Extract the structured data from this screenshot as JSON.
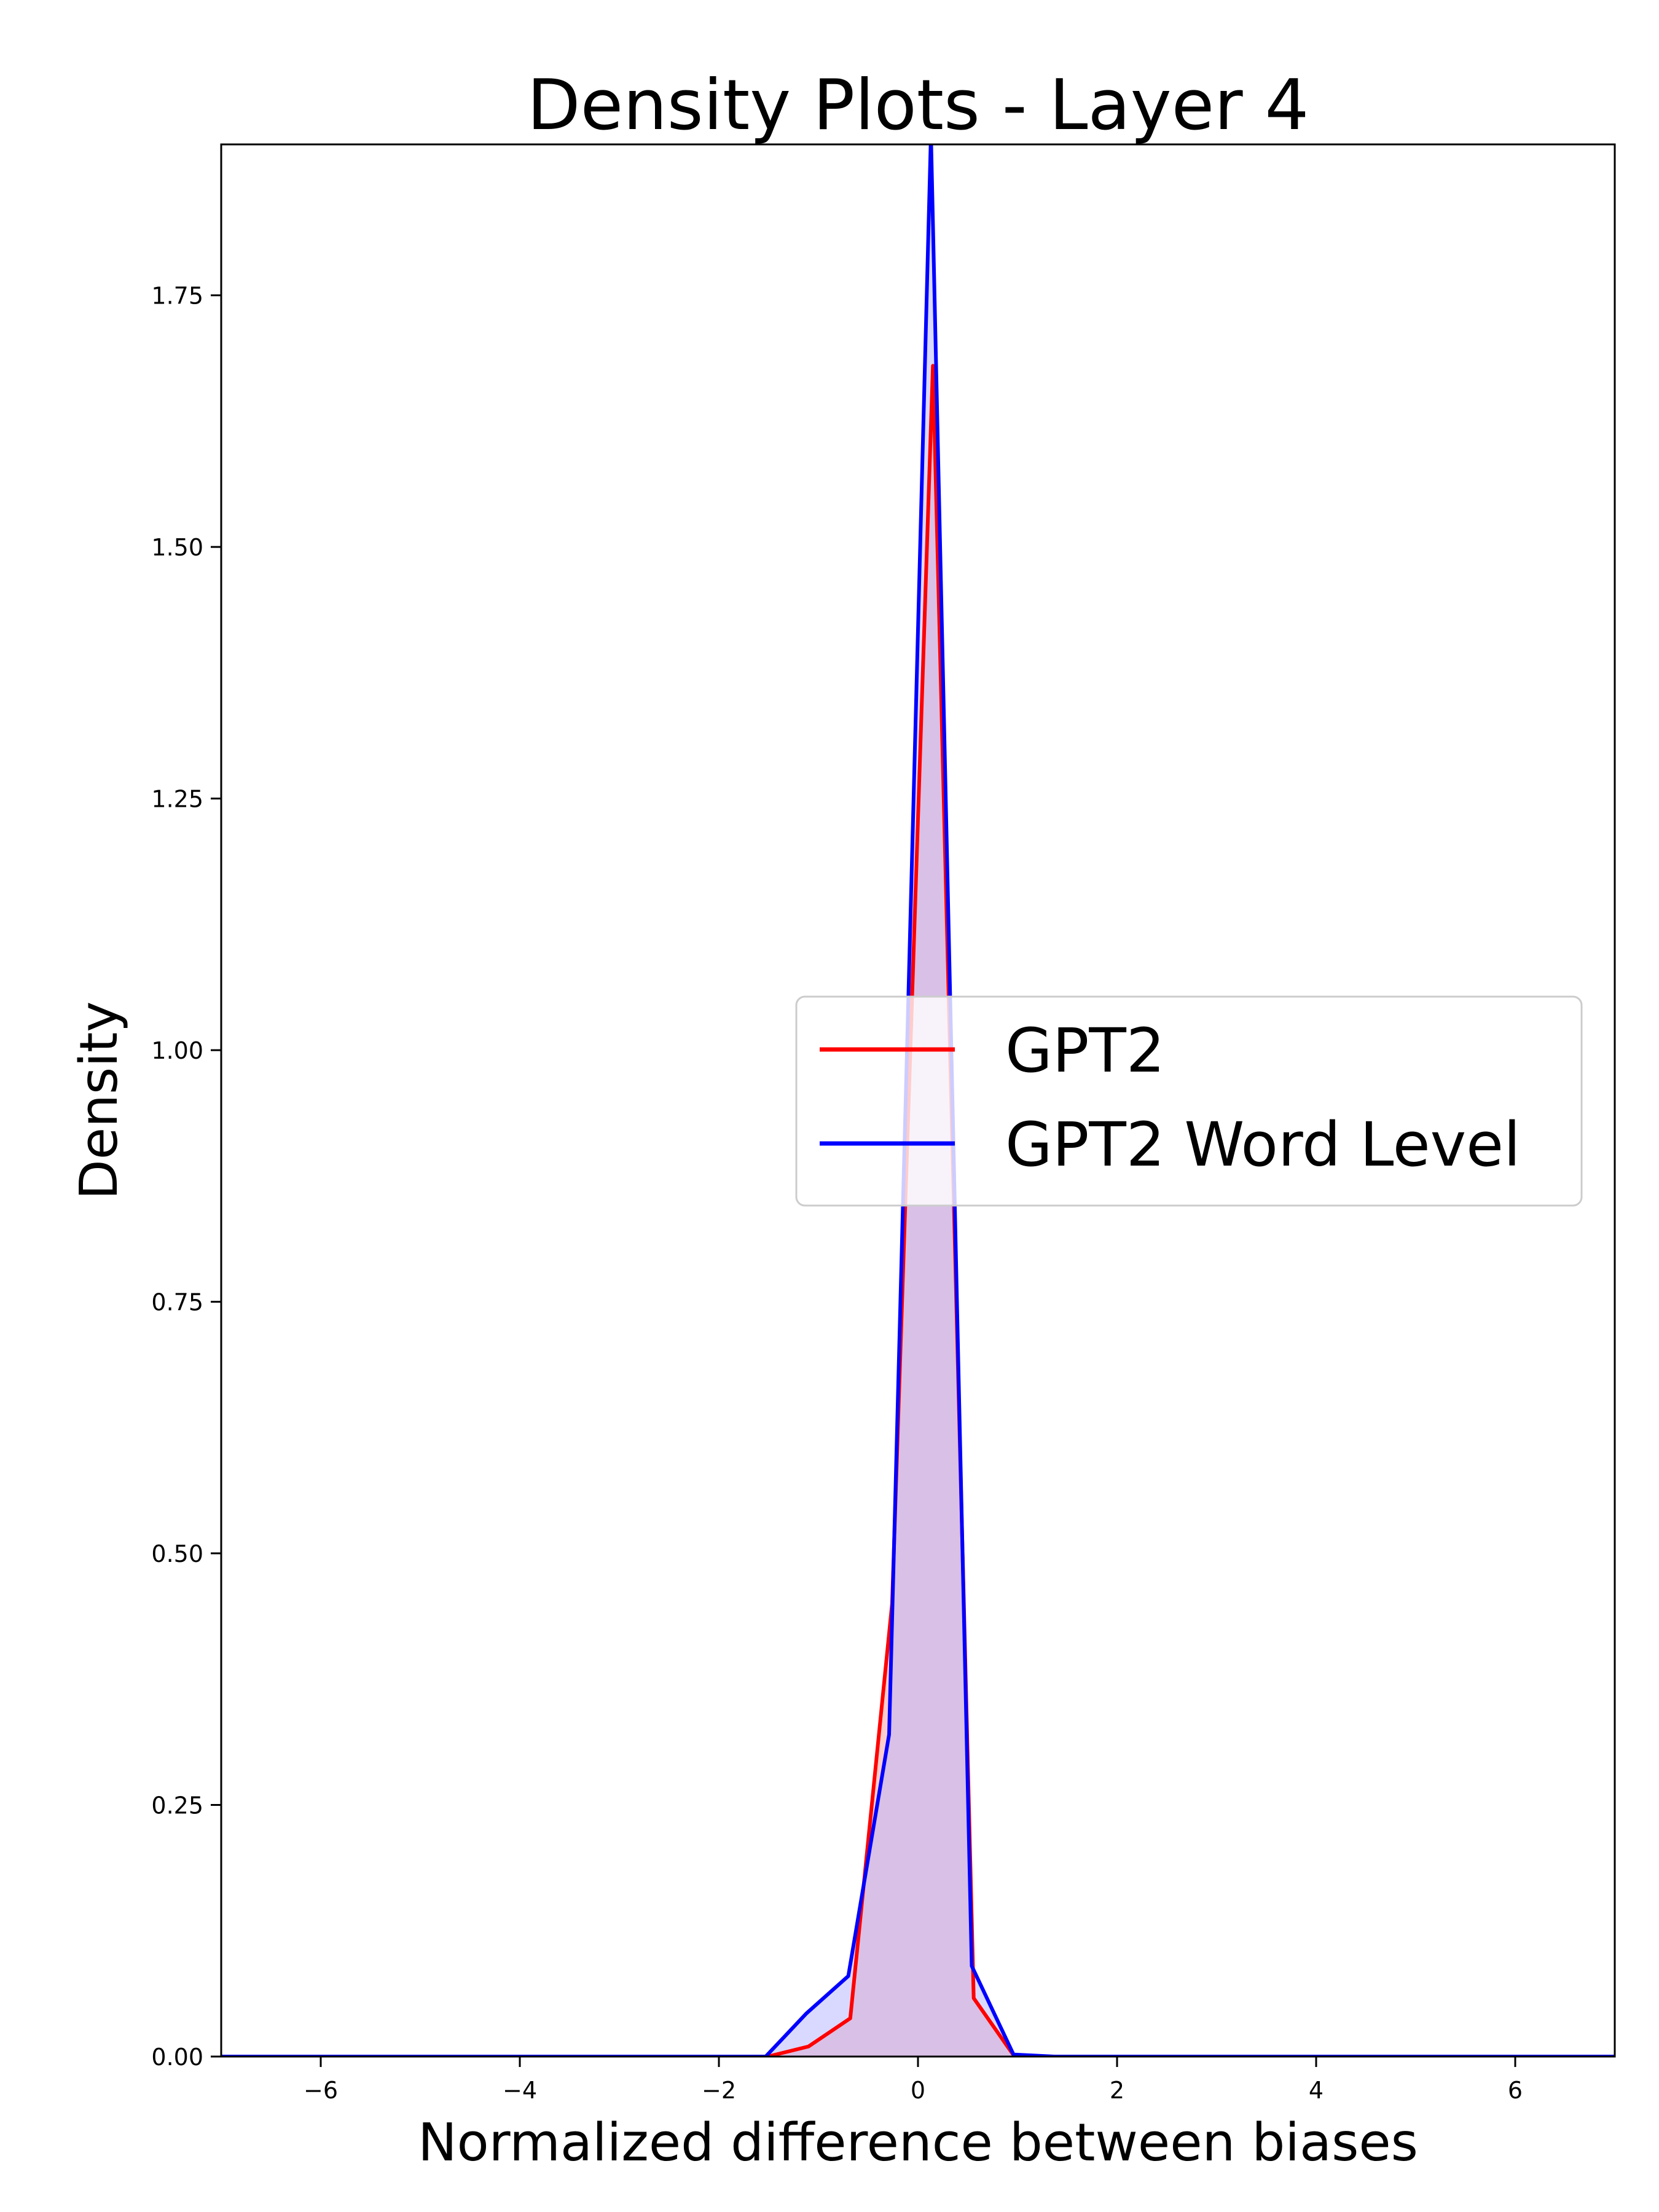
{
  "chart_data": {
    "type": "area",
    "title": "Density Plots - Layer 4",
    "xlabel": "Normalized difference between biases",
    "ylabel": "Density",
    "xlim": [
      -7,
      7
    ],
    "ylim": [
      0,
      1.9
    ],
    "xticks": [
      -6,
      -4,
      -2,
      0,
      2,
      4,
      6
    ],
    "xtick_labels": [
      "−6",
      "−4",
      "−2",
      "0",
      "2",
      "4",
      "6"
    ],
    "yticks": [
      0.0,
      0.25,
      0.5,
      0.75,
      1.0,
      1.25,
      1.5,
      1.75
    ],
    "ytick_labels": [
      "0.00",
      "0.25",
      "0.50",
      "0.75",
      "1.00",
      "1.25",
      "1.50",
      "1.75"
    ],
    "grid": false,
    "legend_position": "center-right",
    "series": [
      {
        "name": "GPT2",
        "color": "#ff0000",
        "fill_color": "#ff9999",
        "x": [
          -7,
          -1.51,
          -1.1,
          -0.68,
          -0.26,
          0.15,
          0.56,
          0.97,
          1.38,
          7
        ],
        "y": [
          0,
          0,
          0.01,
          0.038,
          0.45,
          1.68,
          0.058,
          0.0,
          0,
          0
        ]
      },
      {
        "name": "GPT2 Word Level",
        "color": "#0000ff",
        "fill_color": "#b3b3ff",
        "x": [
          -7,
          -1.53,
          -1.12,
          -0.7,
          -0.29,
          0.13,
          0.54,
          0.96,
          1.37,
          7
        ],
        "y": [
          0,
          0,
          0.043,
          0.08,
          0.32,
          1.91,
          0.09,
          0.002,
          0,
          0
        ]
      }
    ]
  }
}
